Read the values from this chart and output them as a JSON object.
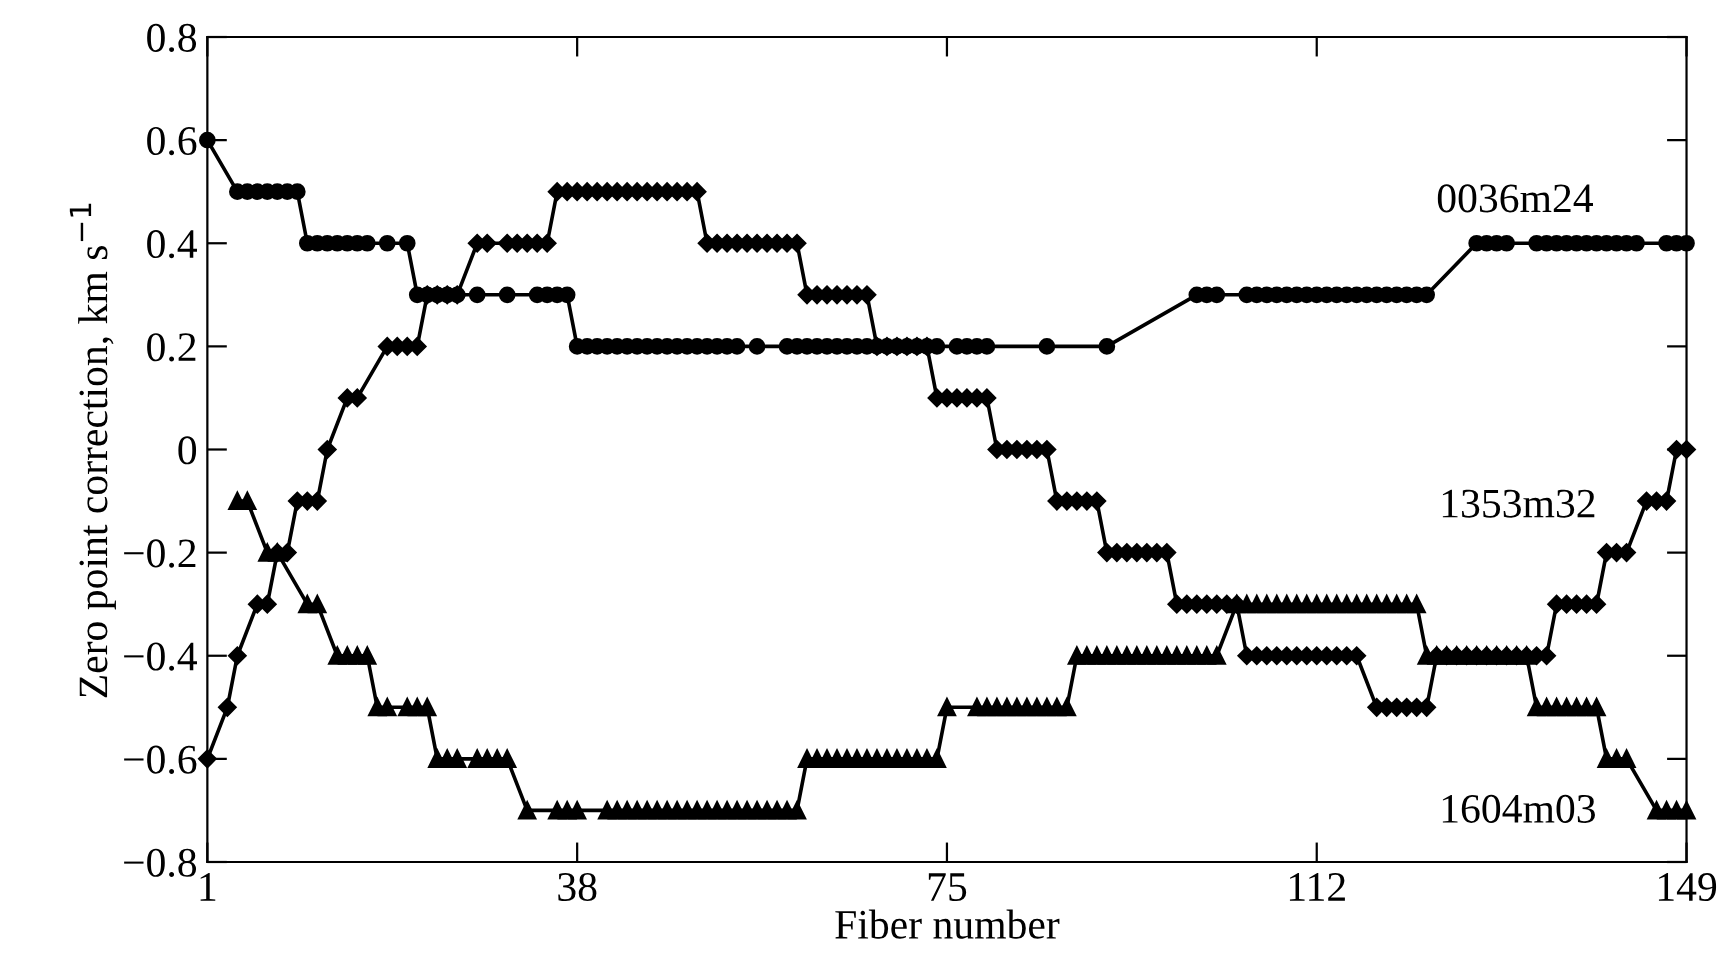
{
  "chart_data": {
    "type": "line",
    "xlabel": "Fiber number",
    "ylabel": "Zero point correction, km s$^{−1}$",
    "xlim": [
      1,
      149
    ],
    "xticks": [
      1,
      38,
      75,
      112,
      149
    ],
    "ylim": [
      -0.8,
      0.8
    ],
    "yticks": [
      {
        "value": -0.8,
        "label": "−0.8"
      },
      {
        "value": -0.6,
        "label": "−0.6"
      },
      {
        "value": -0.4,
        "label": "−0.4"
      },
      {
        "value": -0.2,
        "label": "−0.2"
      },
      0,
      0.2,
      0.4,
      0.6,
      0.8
    ],
    "grid": false,
    "legend": false,
    "line_style": "solid",
    "series": [
      {
        "name": "0036m24",
        "color": "#000000",
        "marker": "circle",
        "x": [
          1,
          4,
          5,
          6,
          7,
          8,
          9,
          10,
          11,
          12,
          13,
          14,
          15,
          16,
          17,
          19,
          21,
          22,
          23,
          24,
          25,
          26,
          28,
          31,
          34,
          35,
          36,
          37,
          38,
          39,
          40,
          41,
          42,
          43,
          44,
          45,
          46,
          47,
          48,
          49,
          50,
          51,
          52,
          53,
          54,
          56,
          59,
          60,
          61,
          62,
          63,
          64,
          65,
          66,
          67,
          68,
          69,
          70,
          71,
          72,
          73,
          74,
          76,
          77,
          78,
          79,
          85,
          91,
          100,
          101,
          102,
          105,
          106,
          107,
          108,
          109,
          110,
          111,
          112,
          113,
          114,
          115,
          116,
          117,
          118,
          119,
          120,
          121,
          122,
          123,
          128,
          129,
          130,
          131,
          134,
          135,
          136,
          137,
          138,
          139,
          140,
          141,
          142,
          143,
          144,
          147,
          148,
          149
        ],
        "values": [
          0.6,
          0.5,
          0.5,
          0.5,
          0.5,
          0.5,
          0.5,
          0.5,
          0.4,
          0.4,
          0.4,
          0.4,
          0.4,
          0.4,
          0.4,
          0.4,
          0.4,
          0.3,
          0.3,
          0.3,
          0.3,
          0.3,
          0.3,
          0.3,
          0.3,
          0.3,
          0.3,
          0.3,
          0.2,
          0.2,
          0.2,
          0.2,
          0.2,
          0.2,
          0.2,
          0.2,
          0.2,
          0.2,
          0.2,
          0.2,
          0.2,
          0.2,
          0.2,
          0.2,
          0.2,
          0.2,
          0.2,
          0.2,
          0.2,
          0.2,
          0.2,
          0.2,
          0.2,
          0.2,
          0.2,
          0.2,
          0.2,
          0.2,
          0.2,
          0.2,
          0.2,
          0.2,
          0.2,
          0.2,
          0.2,
          0.2,
          0.2,
          0.2,
          0.3,
          0.3,
          0.3,
          0.3,
          0.3,
          0.3,
          0.3,
          0.3,
          0.3,
          0.3,
          0.3,
          0.3,
          0.3,
          0.3,
          0.3,
          0.3,
          0.3,
          0.3,
          0.3,
          0.3,
          0.3,
          0.3,
          0.4,
          0.4,
          0.4,
          0.4,
          0.4,
          0.4,
          0.4,
          0.4,
          0.4,
          0.4,
          0.4,
          0.4,
          0.4,
          0.4,
          0.4,
          0.4,
          0.4,
          0.4
        ]
      },
      {
        "name": "1353m32",
        "color": "#000000",
        "marker": "diamond",
        "x": [
          1,
          3,
          4,
          6,
          7,
          8,
          9,
          10,
          11,
          12,
          13,
          15,
          16,
          19,
          20,
          21,
          22,
          23,
          24,
          25,
          26,
          28,
          29,
          31,
          32,
          33,
          34,
          35,
          36,
          37,
          38,
          39,
          40,
          41,
          42,
          43,
          44,
          45,
          46,
          47,
          48,
          49,
          50,
          51,
          52,
          53,
          54,
          55,
          56,
          57,
          58,
          59,
          60,
          61,
          62,
          63,
          64,
          65,
          66,
          67,
          68,
          69,
          70,
          71,
          72,
          73,
          74,
          75,
          76,
          77,
          78,
          79,
          80,
          81,
          82,
          83,
          84,
          85,
          86,
          87,
          88,
          89,
          90,
          91,
          92,
          93,
          94,
          95,
          96,
          97,
          98,
          99,
          100,
          101,
          102,
          103,
          104,
          105,
          106,
          107,
          108,
          109,
          110,
          111,
          112,
          113,
          114,
          115,
          116,
          118,
          119,
          120,
          121,
          122,
          123,
          124,
          125,
          126,
          127,
          128,
          129,
          130,
          131,
          132,
          133,
          134,
          135,
          136,
          137,
          138,
          139,
          140,
          141,
          142,
          143,
          145,
          146,
          147,
          148,
          149
        ],
        "values": [
          -0.6,
          -0.5,
          -0.4,
          -0.3,
          -0.3,
          -0.2,
          -0.2,
          -0.1,
          -0.1,
          -0.1,
          0,
          0.1,
          0.1,
          0.2,
          0.2,
          0.2,
          0.2,
          0.3,
          0.3,
          0.3,
          0.3,
          0.4,
          0.4,
          0.4,
          0.4,
          0.4,
          0.4,
          0.4,
          0.5,
          0.5,
          0.5,
          0.5,
          0.5,
          0.5,
          0.5,
          0.5,
          0.5,
          0.5,
          0.5,
          0.5,
          0.5,
          0.5,
          0.5,
          0.4,
          0.4,
          0.4,
          0.4,
          0.4,
          0.4,
          0.4,
          0.4,
          0.4,
          0.4,
          0.3,
          0.3,
          0.3,
          0.3,
          0.3,
          0.3,
          0.3,
          0.2,
          0.2,
          0.2,
          0.2,
          0.2,
          0.2,
          0.1,
          0.1,
          0.1,
          0.1,
          0.1,
          0.1,
          0,
          0,
          0,
          0,
          0,
          0,
          -0.1,
          -0.1,
          -0.1,
          -0.1,
          -0.1,
          -0.2,
          -0.2,
          -0.2,
          -0.2,
          -0.2,
          -0.2,
          -0.2,
          -0.3,
          -0.3,
          -0.3,
          -0.3,
          -0.3,
          -0.3,
          -0.3,
          -0.4,
          -0.4,
          -0.4,
          -0.4,
          -0.4,
          -0.4,
          -0.4,
          -0.4,
          -0.4,
          -0.4,
          -0.4,
          -0.4,
          -0.5,
          -0.5,
          -0.5,
          -0.5,
          -0.5,
          -0.5,
          -0.4,
          -0.4,
          -0.4,
          -0.4,
          -0.4,
          -0.4,
          -0.4,
          -0.4,
          -0.4,
          -0.4,
          -0.4,
          -0.4,
          -0.3,
          -0.3,
          -0.3,
          -0.3,
          -0.3,
          -0.2,
          -0.2,
          -0.2,
          -0.1,
          -0.1,
          -0.1,
          0,
          0
        ]
      },
      {
        "name": "1604m03",
        "color": "#000000",
        "marker": "triangle",
        "x": [
          4,
          5,
          7,
          8,
          11,
          12,
          14,
          15,
          16,
          17,
          18,
          19,
          21,
          22,
          23,
          24,
          25,
          26,
          28,
          29,
          30,
          31,
          33,
          36,
          37,
          38,
          41,
          42,
          43,
          44,
          45,
          46,
          47,
          48,
          49,
          50,
          51,
          52,
          53,
          54,
          55,
          56,
          57,
          58,
          59,
          60,
          61,
          62,
          63,
          64,
          65,
          66,
          67,
          68,
          69,
          70,
          71,
          72,
          73,
          74,
          75,
          78,
          79,
          80,
          81,
          82,
          83,
          84,
          85,
          86,
          87,
          88,
          89,
          90,
          91,
          92,
          93,
          94,
          95,
          96,
          97,
          98,
          99,
          100,
          101,
          102,
          104,
          105,
          106,
          107,
          108,
          109,
          110,
          111,
          112,
          113,
          114,
          115,
          116,
          117,
          118,
          119,
          120,
          121,
          122,
          123,
          124,
          125,
          126,
          127,
          128,
          129,
          130,
          131,
          132,
          133,
          134,
          135,
          136,
          137,
          138,
          139,
          140,
          141,
          142,
          143,
          146,
          147,
          148,
          149
        ],
        "values": [
          -0.1,
          -0.1,
          -0.2,
          -0.2,
          -0.3,
          -0.3,
          -0.4,
          -0.4,
          -0.4,
          -0.4,
          -0.5,
          -0.5,
          -0.5,
          -0.5,
          -0.5,
          -0.6,
          -0.6,
          -0.6,
          -0.6,
          -0.6,
          -0.6,
          -0.6,
          -0.7,
          -0.7,
          -0.7,
          -0.7,
          -0.7,
          -0.7,
          -0.7,
          -0.7,
          -0.7,
          -0.7,
          -0.7,
          -0.7,
          -0.7,
          -0.7,
          -0.7,
          -0.7,
          -0.7,
          -0.7,
          -0.7,
          -0.7,
          -0.7,
          -0.7,
          -0.7,
          -0.7,
          -0.6,
          -0.6,
          -0.6,
          -0.6,
          -0.6,
          -0.6,
          -0.6,
          -0.6,
          -0.6,
          -0.6,
          -0.6,
          -0.6,
          -0.6,
          -0.6,
          -0.5,
          -0.5,
          -0.5,
          -0.5,
          -0.5,
          -0.5,
          -0.5,
          -0.5,
          -0.5,
          -0.5,
          -0.5,
          -0.4,
          -0.4,
          -0.4,
          -0.4,
          -0.4,
          -0.4,
          -0.4,
          -0.4,
          -0.4,
          -0.4,
          -0.4,
          -0.4,
          -0.4,
          -0.4,
          -0.4,
          -0.3,
          -0.3,
          -0.3,
          -0.3,
          -0.3,
          -0.3,
          -0.3,
          -0.3,
          -0.3,
          -0.3,
          -0.3,
          -0.3,
          -0.3,
          -0.3,
          -0.3,
          -0.3,
          -0.3,
          -0.3,
          -0.3,
          -0.4,
          -0.4,
          -0.4,
          -0.4,
          -0.4,
          -0.4,
          -0.4,
          -0.4,
          -0.4,
          -0.4,
          -0.4,
          -0.5,
          -0.5,
          -0.5,
          -0.5,
          -0.5,
          -0.5,
          -0.5,
          -0.6,
          -0.6,
          -0.6,
          -0.7,
          -0.7,
          -0.7,
          -0.7
        ]
      }
    ]
  }
}
